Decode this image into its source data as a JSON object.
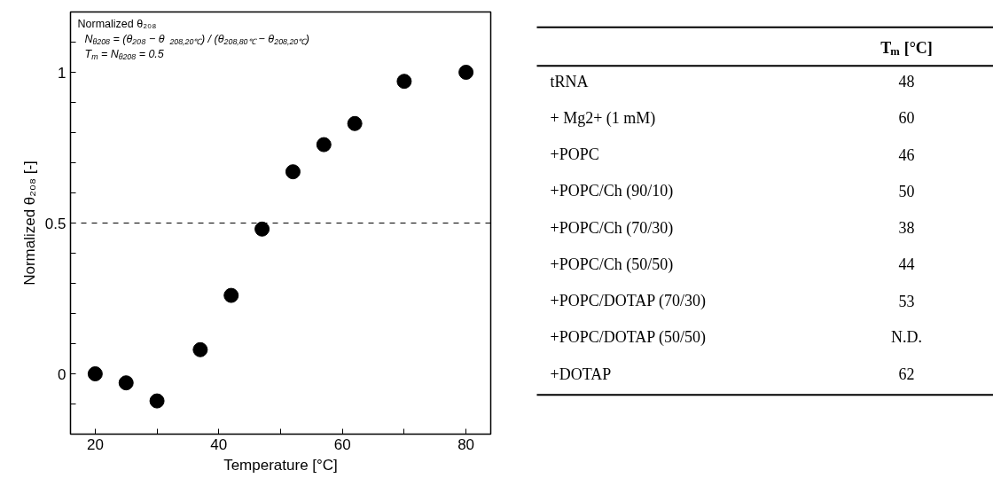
{
  "chart_data": [
    {
      "type": "scatter",
      "xlabel": "Temperature [°C]",
      "ylabel": "Normalized θ₂₀₈ [-]",
      "x": [
        20,
        25,
        30,
        37,
        42,
        47,
        52,
        57,
        62,
        70,
        80
      ],
      "values": [
        0,
        -0.03,
        -0.09,
        0.08,
        0.26,
        0.48,
        0.67,
        0.76,
        0.83,
        0.97,
        1.0
      ],
      "color": "#000000",
      "marker": "circle",
      "xlim": [
        16,
        84
      ],
      "ylim": [
        -0.2,
        1.2
      ],
      "xticks": [
        20,
        {
          "value": 30,
          "label": null
        },
        40,
        {
          "value": 50,
          "label": null
        },
        60,
        {
          "value": 70,
          "label": null
        },
        80
      ],
      "yticks": [
        {
          "value": -0.1,
          "label": null
        },
        0,
        {
          "value": 0.1,
          "label": null
        },
        {
          "value": 0.2,
          "label": null
        },
        {
          "value": 0.3,
          "label": null
        },
        {
          "value": 0.4,
          "label": null
        },
        0.5,
        {
          "value": 0.6,
          "label": null
        },
        {
          "value": 0.7,
          "label": null
        },
        {
          "value": 0.8,
          "label": null
        },
        {
          "value": 0.9,
          "label": null
        },
        1,
        {
          "value": 1.1,
          "label": null
        }
      ],
      "ref_lines": [
        {
          "axis": "y",
          "value": 0.5,
          "line_style": "dashed",
          "color": "#000000"
        }
      ],
      "annotations": [
        "Normalized θ₂₀₈",
        "N$_{θ208}$ = (θ₂₀₈ − θ$_{208,20℃}$) / (θ$_{208,80℃}$ − θ$_{208,20℃}$)",
        "T$_{m}$ = N$_{θ208}$ = 0.5"
      ],
      "grid": false
    },
    {
      "type": "other",
      "title": "T$_{m}$ [°C]",
      "categories": [
        "tRNA",
        "+ Mg2+ (1 mM)",
        "+POPC",
        "+POPC/Ch (90/10)",
        "+POPC/Ch (70/30)",
        "+POPC/Ch (50/50)",
        "+POPC/DOTAP (70/30)",
        "+POPC/DOTAP (50/50)",
        "+DOTAP"
      ],
      "values": [
        48,
        60,
        46,
        50,
        38,
        44,
        53,
        null,
        62
      ],
      "value_labels": [
        "48",
        "60",
        "46",
        "50",
        "38",
        "44",
        "53",
        "N.D.",
        "62"
      ]
    }
  ]
}
